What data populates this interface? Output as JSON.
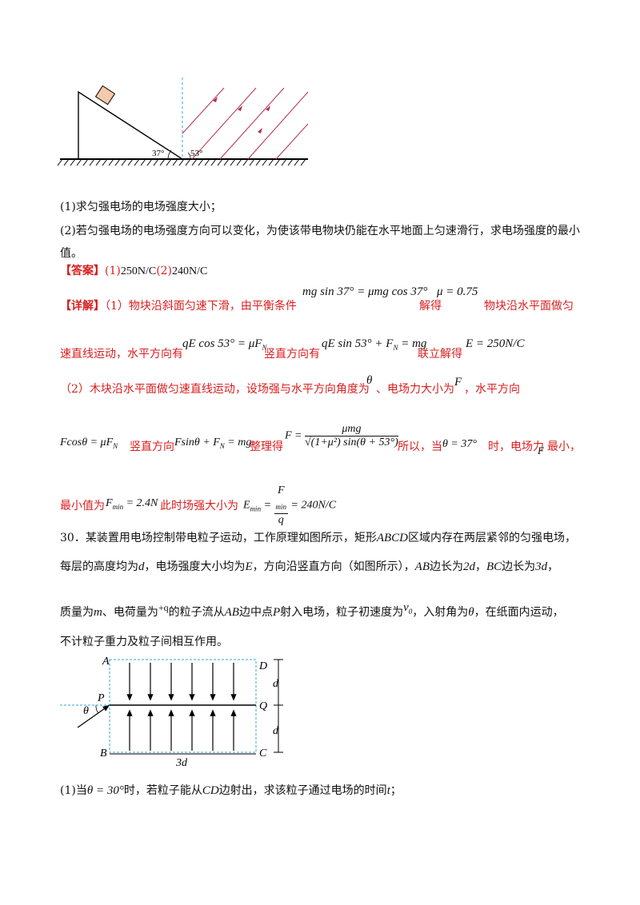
{
  "figure1": {
    "angle1": "37°",
    "angle2": "53°"
  },
  "q1": "(1)求匀强电场的电场强度大小；",
  "q2_line1": "(2)若匀强电场的电场强度方向可以变化，为使该带电物块仍能在水平地面上匀速滑行，求电场强度的最小",
  "q2_line2": "值。",
  "answer": {
    "tag": "【答案】",
    "part1_label": "(1)",
    "part1_value": "250N/C",
    "part2_label": "(2)",
    "part2_value": "240N/C"
  },
  "detail": {
    "tag": "【详解】",
    "l1_text": "（1）物块沿斜面匀速下滑，由平衡条件",
    "l1_eq": "mg sin 37° = μmg cos 37°",
    "l1_solve": "解得",
    "l1_mu": "μ = 0.75",
    "l1_tail": "物块沿水平面做匀",
    "l2_a": "速直线运动，水平方向有",
    "l2_eq1": "qE cos 53° = μF",
    "l2_b": "竖直方向有",
    "l2_eq2": "qE sin 53° + F",
    "l2_eq2b": " = mg",
    "l2_c": "联立解得",
    "l2_E": "E = 250N/C",
    "l3_a": "（2）木块沿水平面做匀速直线运动，设场强与水平方向角度为",
    "l3_theta": "θ",
    "l3_b": "、电场力大小为",
    "l3_F": "F",
    "l3_c": "，水平方向",
    "l4_eq1": "Fcosθ = μF",
    "l4_a": "竖直方向",
    "l4_eq2": "Fsinθ + F",
    "l4_eq2b": " = mg",
    "l4_b": "整理得",
    "l4_Fnum": "μmg",
    "l4_Fden": "√(1+μ²) sin(θ + 53°)",
    "l4_Flhs": "F =",
    "l4_c": "所以，当",
    "l4_theta": "θ = 37°",
    "l4_d": "时，电场力",
    "l4_F": "F",
    "l4_e": "最小，",
    "l5_a": "最小值为",
    "l5_eq1": "F",
    "l5_eq1_sub": "min",
    "l5_eq1_val": " = 2.4N",
    "l5_b": "此时场强大小为",
    "l5_eq2_lhs": "E",
    "l5_eq2_sub": "min",
    "l5_eq2_num": "F",
    "l5_eq2_den": "q",
    "l5_eq2_val": "= 240N/C"
  },
  "q30": {
    "l1": "30．某装置用电场控制带电粒子运动，工作原理如图所示，矩形",
    "l1_abcd": "ABCD",
    "l1_b": "区域内存在两层紧邻的匀强电场，",
    "l2_a": "每层的高度均为",
    "l2_d": "d",
    "l2_b": "，电场强度大小均为",
    "l2_E": "E",
    "l2_c": "，方向沿竖直方向（如图所示），",
    "l2_AB": "AB",
    "l2_d2": "边长为",
    "l2_2d": "2d",
    "l2_e": "，",
    "l2_BC": "BC",
    "l2_f": "边长为",
    "l2_3d": "3d",
    "l2_g": "，",
    "l3_a": "质量为",
    "l3_m": "m",
    "l3_b": "、电荷量为",
    "l3_q": "+q",
    "l3_c": "的粒子流从",
    "l3_AB": "AB",
    "l3_d": "边中点",
    "l3_P": "P",
    "l3_e": "射入电场，粒子初速度为",
    "l3_v0": "v",
    "l3_f": "，入射角为",
    "l3_theta": "θ",
    "l3_g": "，在纸面内运动，",
    "l4": "不计粒子重力及粒子间相互作用。",
    "q1_a": "(1)当",
    "q1_theta": "θ = 30°",
    "q1_b": "时，若粒子能从",
    "q1_CD": "CD",
    "q1_c": "边射出，求该粒子通过电场的时间",
    "q1_t": "t",
    "q1_d": "；"
  },
  "figure2": {
    "A": "A",
    "B": "B",
    "C": "C",
    "D": "D",
    "P": "P",
    "Q": "Q",
    "theta": "θ",
    "d_top": "d",
    "d_bottom": "d",
    "width": "3d"
  },
  "colors": {
    "red": "#d81e1e",
    "field_line": "#b5304a",
    "dashed": "#3aa0d8"
  }
}
